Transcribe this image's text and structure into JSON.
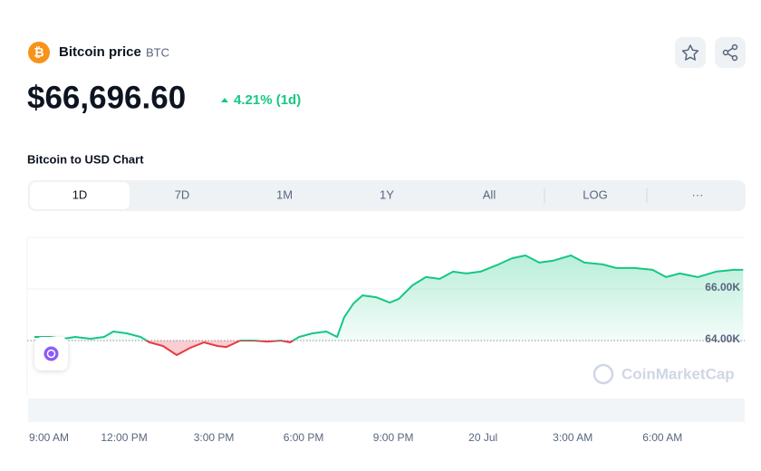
{
  "header": {
    "title": "Bitcoin price",
    "symbol": "BTC",
    "price": "$66,696.60",
    "change": "4.21% (1d)"
  },
  "section_title": "Bitcoin to USD Chart",
  "tabs": [
    "1D",
    "7D",
    "1M",
    "1Y",
    "All",
    "LOG",
    "···"
  ],
  "watermark": "CoinMarketCap",
  "chart_data": {
    "type": "line",
    "x": [
      0,
      0.52,
      0.97,
      1.36,
      1.88,
      2.33,
      2.64,
      3.09,
      3.55,
      3.85,
      4.3,
      4.76,
      5.21,
      5.67,
      6.12,
      6.42,
      6.88,
      7.33,
      7.79,
      8.24,
      8.55,
      8.85,
      9.3,
      9.76,
      10.12,
      10.36,
      10.67,
      10.97,
      11.42,
      11.88,
      12.18,
      12.64,
      13.09,
      13.55,
      14,
      14.45,
      14.91,
      15.52,
      15.97,
      16.42,
      16.88,
      17.33,
      17.94,
      18.39,
      19,
      19.45,
      20.06,
      20.67,
      21.12,
      21.58,
      22.18,
      22.79,
      23.39,
      23.7
    ],
    "values": [
      64140,
      64140,
      64070,
      64140,
      64070,
      64140,
      64350,
      64280,
      64140,
      63930,
      63790,
      63440,
      63720,
      63930,
      63790,
      63750,
      64000,
      64000,
      63960,
      64000,
      63930,
      64140,
      64280,
      64350,
      64140,
      64910,
      65440,
      65750,
      65680,
      65470,
      65610,
      66140,
      66460,
      66390,
      66670,
      66600,
      66670,
      66950,
      67190,
      67300,
      67020,
      67090,
      67300,
      67020,
      66950,
      66810,
      66810,
      66740,
      66460,
      66600,
      66460,
      66670,
      66740,
      66740
    ],
    "baseline": 64000,
    "up_color": "#16c784",
    "down_color": "#ea3943",
    "xlim": [
      0,
      23.75
    ],
    "xticks": [
      {
        "value": 0,
        "label": "9:00 AM"
      },
      {
        "value": 3,
        "label": "12:00 PM"
      },
      {
        "value": 6,
        "label": "3:00 PM"
      },
      {
        "value": 9,
        "label": "6:00 PM"
      },
      {
        "value": 12,
        "label": "9:00 PM"
      },
      {
        "value": 15,
        "label": "20 Jul"
      },
      {
        "value": 18,
        "label": "3:00 AM"
      },
      {
        "value": 21,
        "label": "6:00 AM"
      }
    ],
    "ylim": [
      61860,
      68000
    ],
    "yticks": [
      {
        "value": 64000,
        "label": "64.00K"
      },
      {
        "value": 66000,
        "label": "66.00K"
      }
    ],
    "grid": true
  }
}
